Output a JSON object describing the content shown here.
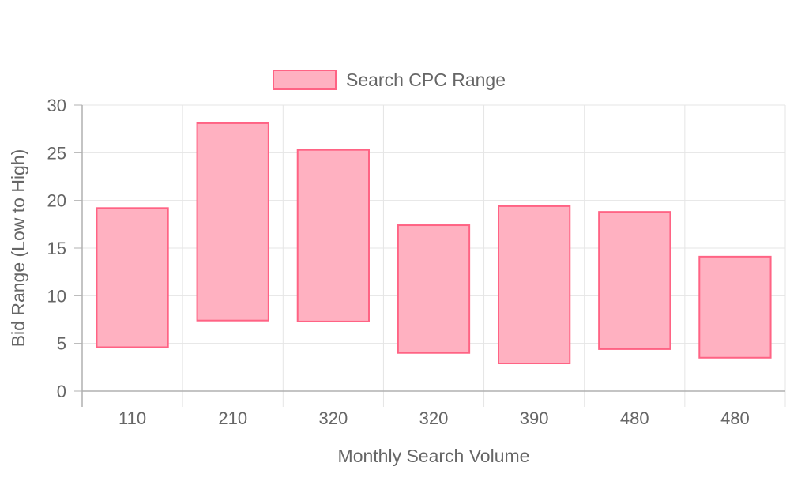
{
  "chart_data": {
    "type": "bar",
    "subtype": "floating-range",
    "categories": [
      "110",
      "210",
      "320",
      "320",
      "390",
      "480",
      "480"
    ],
    "series": [
      {
        "name": "Search CPC Range",
        "ranges": [
          [
            4.6,
            19.2
          ],
          [
            7.4,
            28.1
          ],
          [
            7.3,
            25.3
          ],
          [
            4.0,
            17.4
          ],
          [
            2.9,
            19.4
          ],
          [
            4.4,
            18.8
          ],
          [
            3.5,
            14.1
          ]
        ]
      }
    ],
    "xlabel": "Monthly Search Volume",
    "ylabel": "Bid Range (Low to High)",
    "ylim": [
      0,
      30
    ],
    "yticks": [
      "0",
      "5",
      "10",
      "15",
      "20",
      "25",
      "30"
    ],
    "grid": true,
    "legend_position": "top-center",
    "colors": {
      "bar_fill": "#ffb1c1",
      "bar_stroke": "#ff6384",
      "grid": "#e5e5e5",
      "axis": "#b0b0b0",
      "text": "#666666"
    }
  }
}
